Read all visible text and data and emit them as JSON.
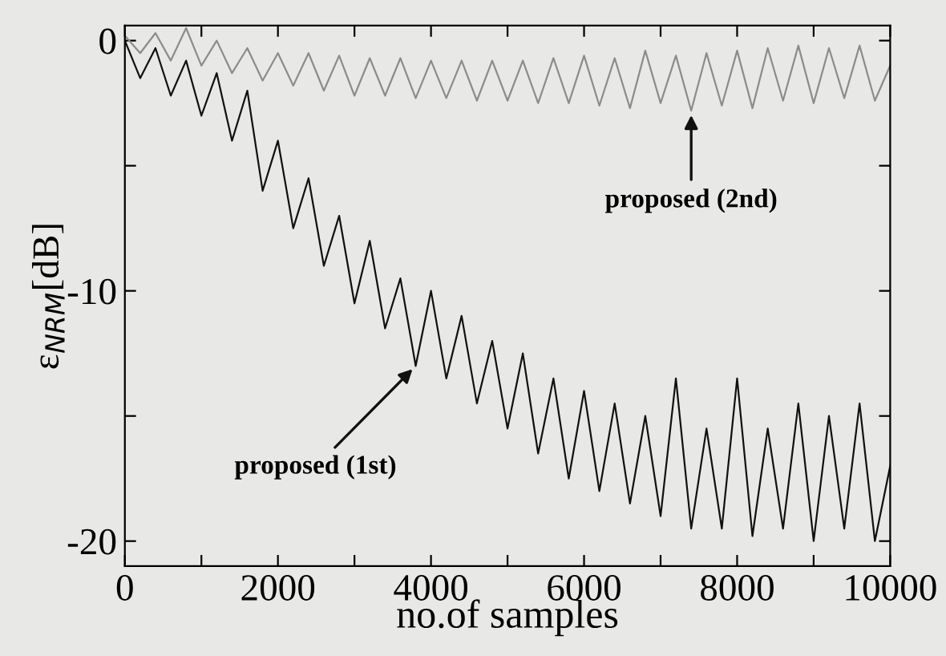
{
  "chart_data": {
    "type": "line",
    "xlabel": "no.of samples",
    "ylabel": "ε$_{NRM}$[dB]",
    "xlim": [
      0,
      10000
    ],
    "ylim": [
      -21,
      0.6
    ],
    "xticks": [
      0,
      {
        "value": 1000,
        "label": null
      },
      2000,
      {
        "value": 3000,
        "label": null
      },
      4000,
      {
        "value": 5000,
        "label": null
      },
      6000,
      {
        "value": 7000,
        "label": null
      },
      8000,
      {
        "value": 9000,
        "label": null
      },
      10000
    ],
    "yticks": [
      {
        "value": -20,
        "label": "-20"
      },
      {
        "value": -15,
        "label": null
      },
      {
        "value": -10,
        "label": "-10"
      },
      {
        "value": -5,
        "label": null
      },
      0
    ],
    "grid": false,
    "legend": false,
    "marker": "none",
    "line_style": "solid",
    "x": [
      0,
      200,
      400,
      600,
      800,
      1000,
      1200,
      1400,
      1600,
      1800,
      2000,
      2200,
      2400,
      2600,
      2800,
      3000,
      3200,
      3400,
      3600,
      3800,
      4000,
      4200,
      4400,
      4600,
      4800,
      5000,
      5200,
      5400,
      5600,
      5800,
      6000,
      6200,
      6400,
      6600,
      6800,
      7000,
      7200,
      7400,
      7600,
      7800,
      8000,
      8200,
      8400,
      8600,
      8800,
      9000,
      9200,
      9400,
      9600,
      9800,
      10000
    ],
    "series": [
      {
        "color": "#8c8c8c",
        "values": [
          0.2,
          -0.5,
          0.3,
          -0.8,
          0.5,
          -1.0,
          0.0,
          -1.3,
          -0.3,
          -1.6,
          -0.5,
          -1.8,
          -0.5,
          -2.0,
          -0.6,
          -2.2,
          -0.7,
          -2.2,
          -0.7,
          -2.3,
          -0.8,
          -2.3,
          -0.8,
          -2.4,
          -0.8,
          -2.4,
          -0.8,
          -2.5,
          -0.7,
          -2.5,
          -0.6,
          -2.6,
          -0.7,
          -2.7,
          -0.4,
          -2.5,
          -0.6,
          -2.8,
          -0.5,
          -2.6,
          -0.4,
          -2.7,
          -0.3,
          -2.4,
          -0.2,
          -2.5,
          -0.3,
          -2.3,
          -0.2,
          -2.4,
          -1.0
        ]
      },
      {
        "color": "#111111",
        "values": [
          0,
          -1.5,
          -0.3,
          -2.2,
          -0.8,
          -3.0,
          -1.3,
          -4.0,
          -2.0,
          -6.0,
          -4.0,
          -7.5,
          -5.5,
          -9.0,
          -7.0,
          -10.5,
          -8.0,
          -11.5,
          -9.5,
          -13.0,
          -10.0,
          -13.5,
          -11.0,
          -14.5,
          -12.0,
          -15.5,
          -12.5,
          -16.5,
          -13.5,
          -17.5,
          -14.0,
          -18.0,
          -14.5,
          -18.5,
          -15.0,
          -19.0,
          -13.5,
          -19.5,
          -15.5,
          -19.5,
          -13.5,
          -19.8,
          -15.5,
          -19.5,
          -14.5,
          -20.0,
          -15.0,
          -19.5,
          -14.5,
          -20.0,
          -17.0
        ]
      }
    ],
    "annotations": [
      {
        "text": "proposed (2nd)",
        "x": 7400,
        "y": -2.8
      },
      {
        "text": "proposed (1st)",
        "x": 3800,
        "y": -13.0
      }
    ]
  }
}
